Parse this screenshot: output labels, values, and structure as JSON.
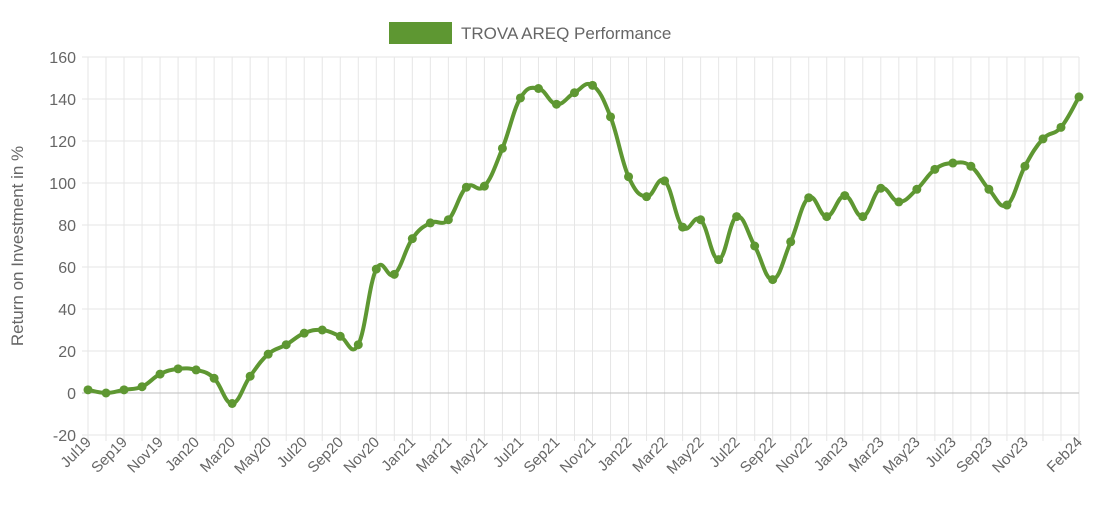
{
  "chart_data": {
    "type": "line",
    "legend": {
      "label": "TROVA AREQ Performance",
      "position": "top"
    },
    "ylabel": "Return on Investment in %",
    "xlabel": "",
    "ylim": [
      -20,
      160
    ],
    "yticks": [
      160,
      140,
      120,
      100,
      80,
      60,
      40,
      20,
      0,
      -20
    ],
    "grid": true,
    "colors": {
      "line": "#5e9732",
      "grid": "#e6e6e6",
      "zero": "#bdbdbd",
      "text": "#666666"
    },
    "x": [
      "Jul19",
      "Aug19",
      "Sep19",
      "Oct19",
      "Nov19",
      "Dec19",
      "Jan20",
      "Feb20",
      "Mar20",
      "Apr20",
      "May20",
      "Jun20",
      "Jul20",
      "Aug20",
      "Sep20",
      "Oct20",
      "Nov20",
      "Dec20",
      "Jan21",
      "Feb21",
      "Mar21",
      "Apr21",
      "May21",
      "Jun21",
      "Jul21",
      "Aug21",
      "Sep21",
      "Oct21",
      "Nov21",
      "Dec21",
      "Jan22",
      "Feb22",
      "Mar22",
      "Apr22",
      "May22",
      "Jun22",
      "Jul22",
      "Aug22",
      "Sep22",
      "Oct22",
      "Nov22",
      "Dec22",
      "Jan23",
      "Feb23",
      "Mar23",
      "Apr23",
      "May23",
      "Jun23",
      "Jul23",
      "Aug23",
      "Sep23",
      "Oct23",
      "Nov23",
      "Dec23",
      "Jan24",
      "Feb24"
    ],
    "xtick_labels": [
      "Jul19",
      "Sep19",
      "Nov19",
      "Jan20",
      "Mar20",
      "May20",
      "Jul20",
      "Sep20",
      "Nov20",
      "Jan21",
      "Mar21",
      "May21",
      "Jul21",
      "Sep21",
      "Nov21",
      "Jan22",
      "Mar22",
      "May22",
      "Jul22",
      "Sep22",
      "Nov22",
      "Jan23",
      "Mar23",
      "May23",
      "Jul23",
      "Sep23",
      "Nov23",
      "Feb24"
    ],
    "series": [
      {
        "name": "TROVA AREQ Performance",
        "values": [
          1.5,
          0,
          1.5,
          3,
          9,
          11.5,
          11,
          7,
          -5,
          8,
          18.5,
          23,
          28.5,
          30,
          27,
          23,
          59,
          56.5,
          73.5,
          81,
          82.5,
          98,
          98.5,
          116.5,
          140.5,
          145,
          137.5,
          143,
          146.5,
          131.5,
          103,
          93.5,
          101,
          79,
          82.5,
          63.5,
          84,
          70,
          54,
          72,
          93,
          84,
          94,
          84,
          97.5,
          91,
          97,
          106.5,
          109.5,
          108,
          97,
          89.5,
          108,
          121,
          126.5,
          141
        ]
      }
    ]
  }
}
